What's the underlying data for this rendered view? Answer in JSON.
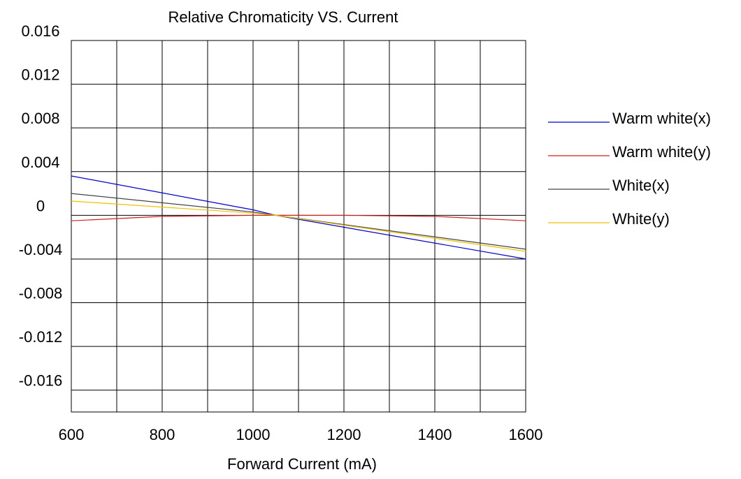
{
  "chart_data": {
    "type": "line",
    "title": "Relative Chromaticity VS. Current",
    "xlabel": "Forward Current (mA)",
    "ylabel": "",
    "xlim": [
      600,
      1600
    ],
    "ylim": [
      -0.018,
      0.016
    ],
    "x_ticks": [
      600,
      800,
      1000,
      1200,
      1400,
      1600
    ],
    "x_tick_labels": [
      "600",
      "800",
      "1000",
      "1200",
      "1400",
      "1600"
    ],
    "y_ticks": [
      0.016,
      0.012,
      0.008,
      0.004,
      0,
      -0.004,
      -0.008,
      -0.012,
      -0.016
    ],
    "y_tick_labels": [
      "0.016",
      "0.012",
      "0.008",
      "0.004",
      "0",
      "-0.004",
      "-0.008",
      "-0.012",
      "-0.016"
    ],
    "grid": true,
    "legend_position": "right",
    "series": [
      {
        "name": "Warm white(x)",
        "color": "#0000cc",
        "x": [
          600,
          1000,
          1050,
          1600
        ],
        "y": [
          0.0036,
          0.0005,
          0.0,
          -0.004
        ]
      },
      {
        "name": "Warm white(y)",
        "color": "#cc2222",
        "x": [
          600,
          800,
          1000,
          1200,
          1400,
          1600
        ],
        "y": [
          -0.0005,
          -0.0001,
          0.0,
          0.0,
          -0.0001,
          -0.0005
        ]
      },
      {
        "name": "White(x)",
        "color": "#444444",
        "x": [
          600,
          1000,
          1050,
          1600
        ],
        "y": [
          0.002,
          0.0003,
          0.0,
          -0.0031
        ]
      },
      {
        "name": "White(y)",
        "color": "#f0c000",
        "x": [
          600,
          1000,
          1050,
          1600
        ],
        "y": [
          0.0013,
          0.0002,
          0.0,
          -0.0033
        ]
      }
    ]
  }
}
